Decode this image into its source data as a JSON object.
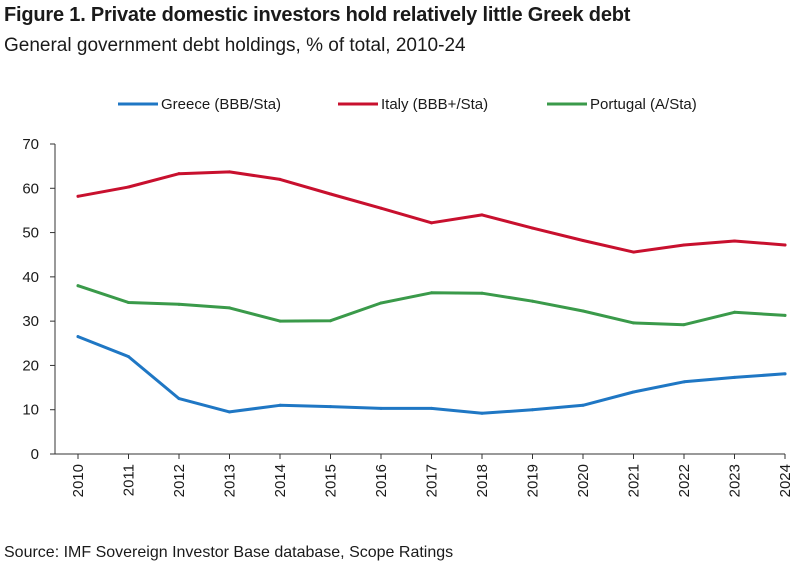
{
  "chart_data": {
    "type": "line",
    "title": "Figure 1. Private domestic investors hold relatively little Greek debt",
    "subtitle": "General government debt holdings, % of total, 2010-24",
    "xlabel": "",
    "ylabel": "",
    "ylim": [
      0,
      70
    ],
    "yticks": [
      "0",
      "10",
      "20",
      "30",
      "40",
      "50",
      "60",
      "70"
    ],
    "grid": false,
    "legend_position": "top",
    "categories": [
      "2010",
      "2011",
      "2012",
      "2013",
      "2014",
      "2015",
      "2016",
      "2017",
      "2018",
      "2019",
      "2020",
      "2021",
      "2022",
      "2023",
      "2024"
    ],
    "series": [
      {
        "name": "Greece (BBB/Sta)",
        "color": "#1f77c4",
        "values": [
          26.5,
          22,
          12.5,
          9.5,
          11,
          10.7,
          10.3,
          10.3,
          9.2,
          10,
          11,
          14,
          16.3,
          17.3,
          18.1
        ]
      },
      {
        "name": "Italy (BBB+/Sta)",
        "color": "#c8102e",
        "values": [
          58.2,
          60.3,
          63.3,
          63.7,
          62,
          58.7,
          55.5,
          52.2,
          54,
          51,
          48.2,
          45.6,
          47.2,
          48.1,
          47.2
        ]
      },
      {
        "name": "Portugal (A/Sta)",
        "color": "#3a9a4a",
        "values": [
          38,
          34.2,
          33.8,
          33,
          30,
          30.1,
          34.1,
          36.4,
          36.3,
          34.5,
          32.3,
          29.6,
          29.2,
          32,
          31.3
        ]
      }
    ]
  },
  "source": "Source: IMF Sovereign Investor Base database, Scope Ratings"
}
